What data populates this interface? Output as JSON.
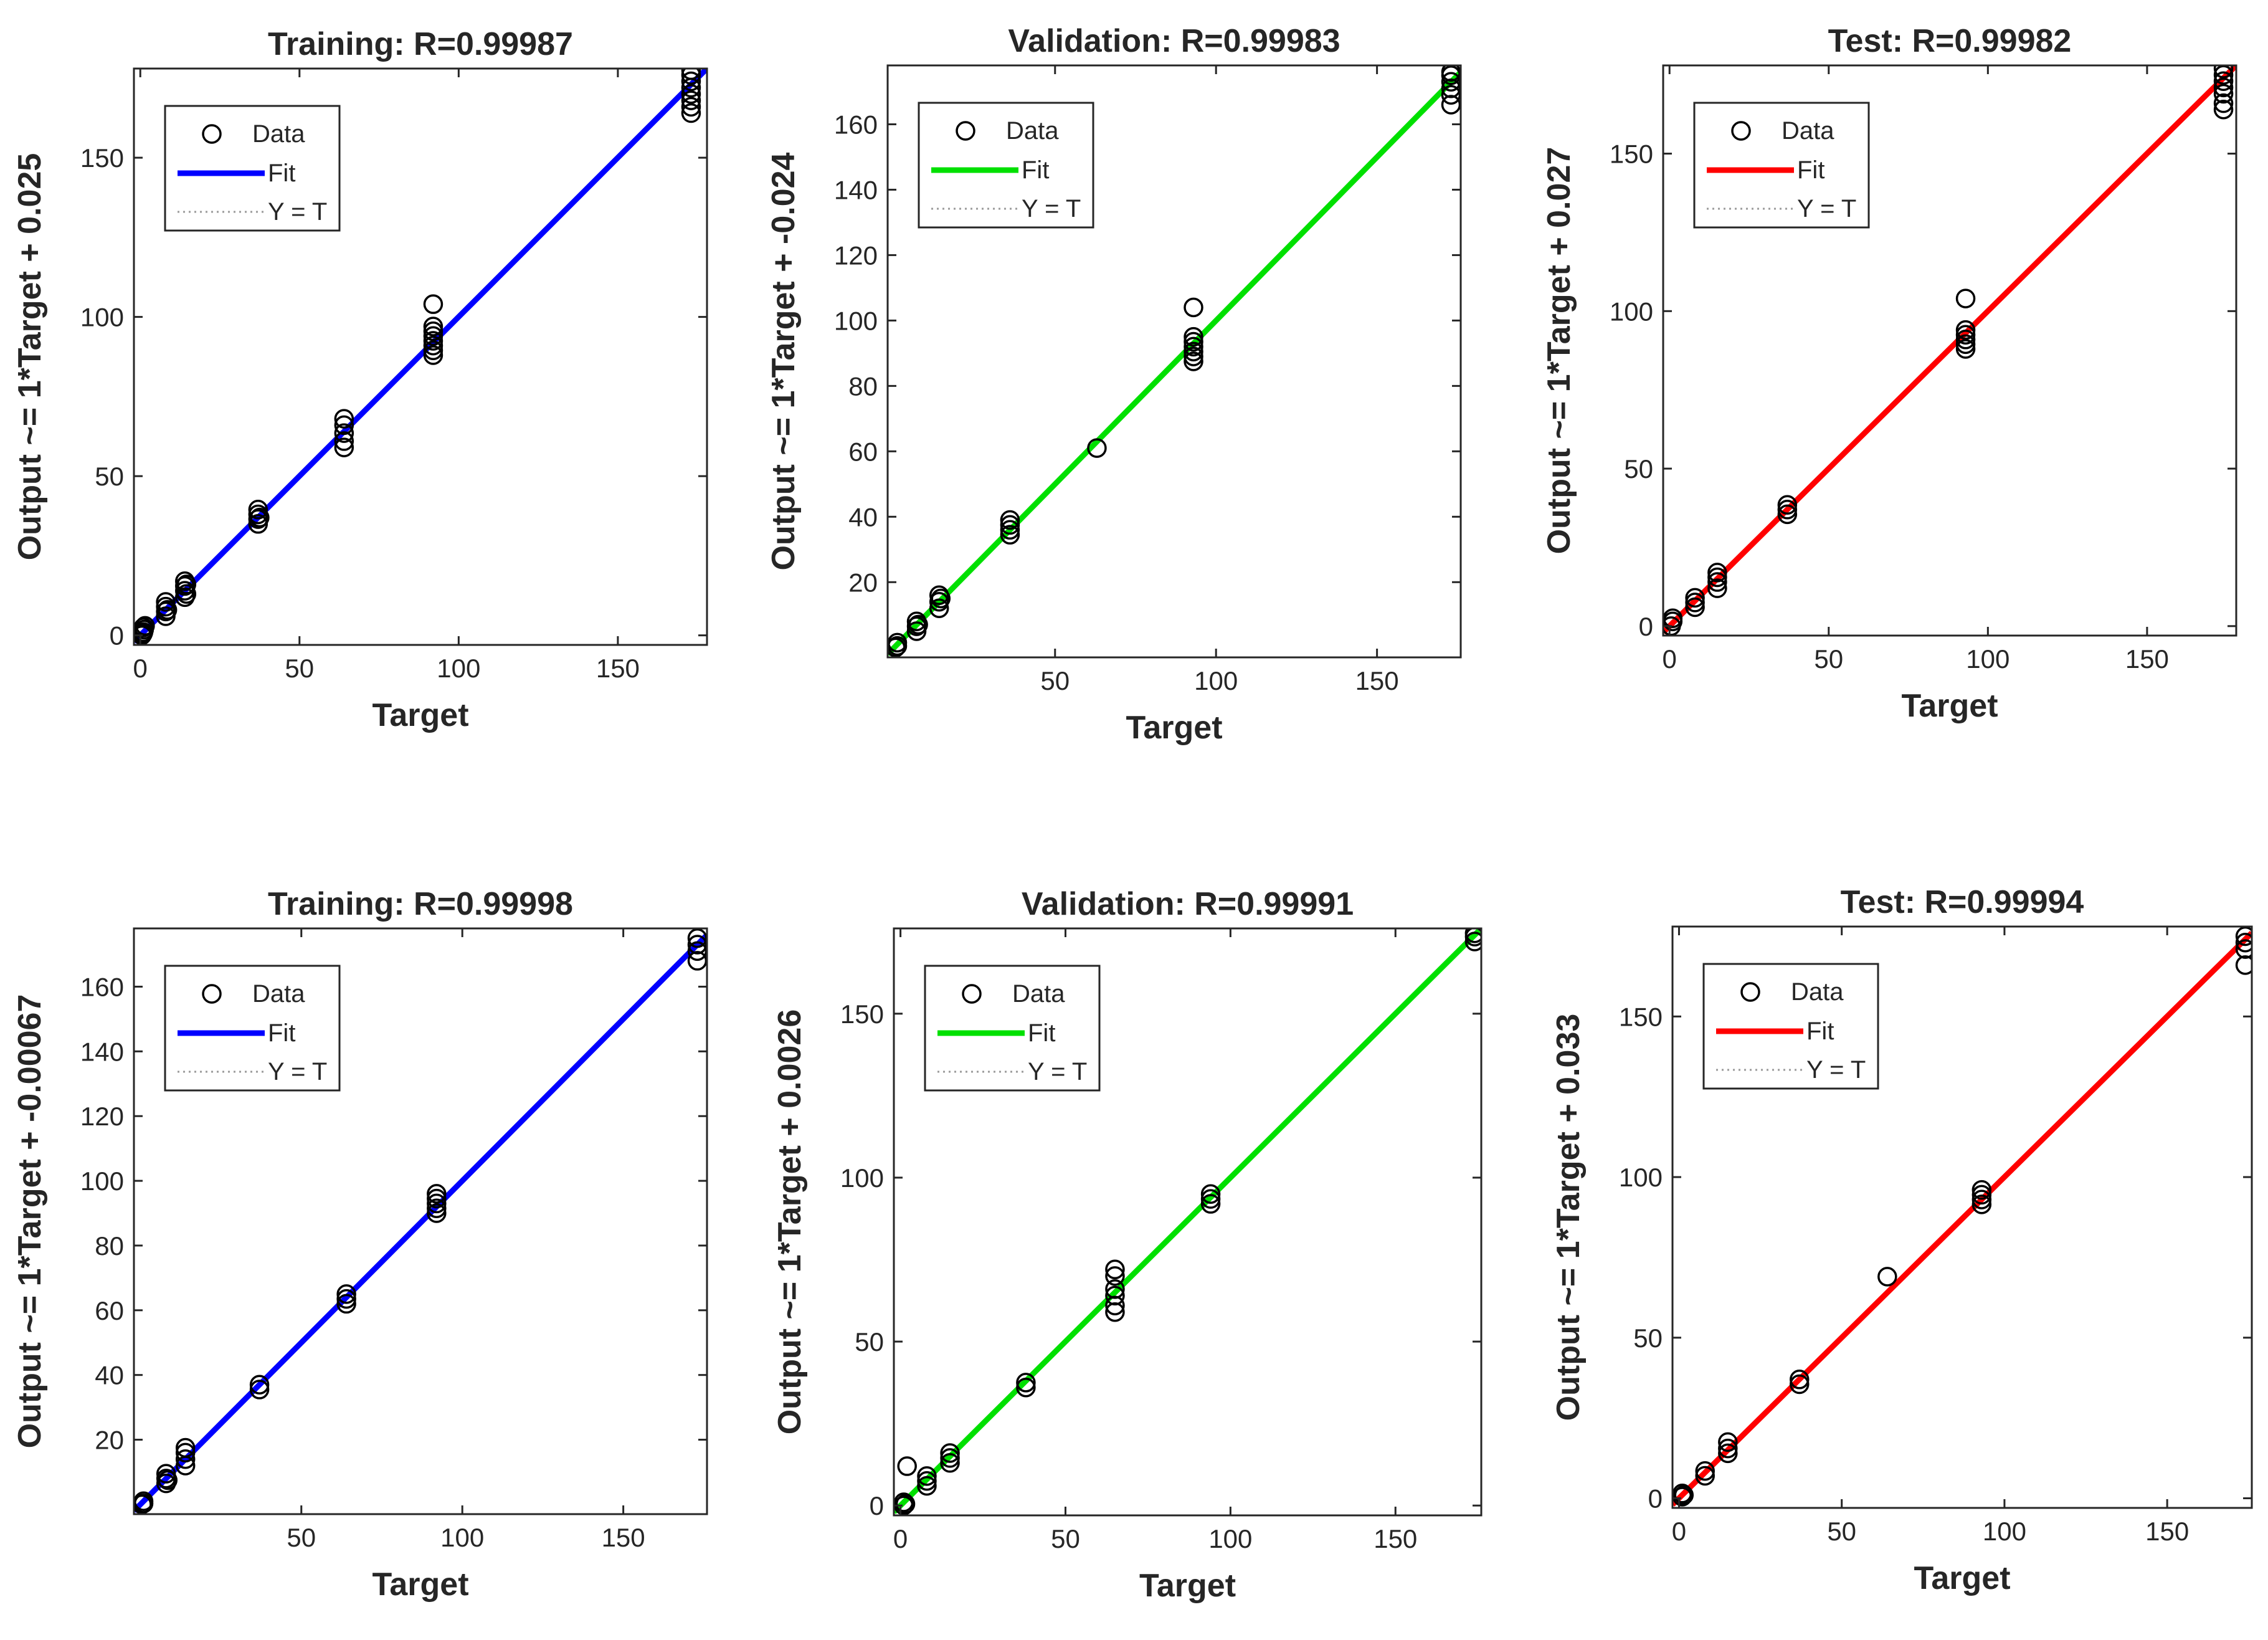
{
  "figure": {
    "background": "#ffffff",
    "axis_color": "#262626"
  },
  "chart_data": [
    {
      "type": "scatter",
      "title": "Training: R=0.99987",
      "xlabel": "Target",
      "ylabel": "Output ~= 1*Target + 0.025",
      "xlim": [
        -2,
        178
      ],
      "ylim": [
        -3,
        178
      ],
      "xticks": [
        0,
        50,
        100,
        150
      ],
      "yticks": [
        0,
        50,
        100,
        150
      ],
      "fit": {
        "slope": 1,
        "intercept": 0.025,
        "color": "#0000ff"
      },
      "legend": {
        "entries": [
          "Data",
          "Fit",
          "Y = T"
        ],
        "position": "top-left"
      },
      "points": [
        [
          0.5,
          0
        ],
        [
          1,
          1
        ],
        [
          1,
          2.5
        ],
        [
          1.2,
          1.8
        ],
        [
          1.5,
          3
        ],
        [
          0.8,
          0.5
        ],
        [
          8,
          6
        ],
        [
          8,
          7.5
        ],
        [
          8,
          9
        ],
        [
          8,
          10.5
        ],
        [
          8.5,
          8
        ],
        [
          14,
          12
        ],
        [
          14,
          14
        ],
        [
          14,
          15.5
        ],
        [
          14,
          17
        ],
        [
          14.5,
          13
        ],
        [
          14.5,
          16
        ],
        [
          37,
          35
        ],
        [
          37,
          36.5
        ],
        [
          37,
          38
        ],
        [
          37,
          39.5
        ],
        [
          37.5,
          37
        ],
        [
          64,
          59
        ],
        [
          64,
          61
        ],
        [
          64,
          63.5
        ],
        [
          64,
          66
        ],
        [
          64,
          68
        ],
        [
          92,
          88
        ],
        [
          92,
          89.5
        ],
        [
          92,
          91
        ],
        [
          92,
          92.5
        ],
        [
          92,
          94
        ],
        [
          92,
          95.5
        ],
        [
          92,
          97
        ],
        [
          92,
          104
        ],
        [
          173,
          164
        ],
        [
          173,
          166
        ],
        [
          173,
          168
        ],
        [
          173,
          170
        ],
        [
          173,
          172
        ],
        [
          173,
          174
        ],
        [
          173,
          176
        ],
        [
          173,
          177.5
        ]
      ]
    },
    {
      "type": "scatter",
      "title": "Validation: R=0.99983",
      "xlabel": "Target",
      "ylabel": "Output ~= 1*Target + -0.024",
      "xlim": [
        -2,
        176
      ],
      "ylim": [
        -3,
        178
      ],
      "xticks": [
        50,
        100,
        150
      ],
      "yticks": [
        20,
        40,
        60,
        80,
        100,
        120,
        140,
        160
      ],
      "fit": {
        "slope": 1,
        "intercept": -0.024,
        "color": "#00e000"
      },
      "legend": {
        "entries": [
          "Data",
          "Fit",
          "Y = T"
        ],
        "position": "top-left"
      },
      "points": [
        [
          0.5,
          0
        ],
        [
          1,
          1.5
        ],
        [
          1,
          0.5
        ],
        [
          7,
          5
        ],
        [
          7,
          6.5
        ],
        [
          7,
          8
        ],
        [
          7.5,
          7
        ],
        [
          14,
          12
        ],
        [
          14,
          14
        ],
        [
          14,
          16
        ],
        [
          14.5,
          15
        ],
        [
          36,
          34.5
        ],
        [
          36,
          36
        ],
        [
          36,
          37.5
        ],
        [
          36,
          39
        ],
        [
          63,
          61
        ],
        [
          93,
          87.5
        ],
        [
          93,
          89
        ],
        [
          93,
          90.5
        ],
        [
          93,
          92
        ],
        [
          93,
          93.5
        ],
        [
          93,
          95
        ],
        [
          93,
          104
        ],
        [
          173,
          166
        ],
        [
          173,
          169
        ],
        [
          173,
          171
        ],
        [
          173,
          173
        ],
        [
          173,
          175
        ],
        [
          173,
          176
        ]
      ]
    },
    {
      "type": "scatter",
      "title": "Test: R=0.99982",
      "xlabel": "Target",
      "ylabel": "Output ~= 1*Target + 0.027",
      "xlim": [
        -2,
        178
      ],
      "ylim": [
        -3,
        178
      ],
      "xticks": [
        0,
        50,
        100,
        150
      ],
      "yticks": [
        0,
        50,
        100,
        150
      ],
      "fit": {
        "slope": 1,
        "intercept": 0.027,
        "color": "#ff0000"
      },
      "legend": {
        "entries": [
          "Data",
          "Fit",
          "Y = T"
        ],
        "position": "top-left"
      },
      "points": [
        [
          0.5,
          0
        ],
        [
          1,
          1.5
        ],
        [
          1,
          2.5
        ],
        [
          8,
          6
        ],
        [
          8,
          7.5
        ],
        [
          8,
          9
        ],
        [
          15,
          12
        ],
        [
          15,
          14
        ],
        [
          15,
          15.5
        ],
        [
          15,
          17
        ],
        [
          37,
          35.5
        ],
        [
          37,
          37
        ],
        [
          37,
          38.5
        ],
        [
          93,
          88
        ],
        [
          93,
          89.5
        ],
        [
          93,
          91
        ],
        [
          93,
          92.5
        ],
        [
          93,
          94
        ],
        [
          93,
          104
        ],
        [
          174,
          164
        ],
        [
          174,
          166
        ],
        [
          174,
          169
        ],
        [
          174,
          171
        ],
        [
          174,
          173
        ],
        [
          174,
          175
        ],
        [
          174,
          177
        ]
      ]
    },
    {
      "type": "scatter",
      "title": "Training: R=0.99998",
      "xlabel": "Target",
      "ylabel": "Output ~= 1*Target + -0.00067",
      "xlim": [
        -2,
        176
      ],
      "ylim": [
        -3,
        178
      ],
      "xticks": [
        50,
        100,
        150
      ],
      "yticks": [
        20,
        40,
        60,
        80,
        100,
        120,
        140,
        160
      ],
      "fit": {
        "slope": 1,
        "intercept": -0.00067,
        "color": "#0000ff"
      },
      "legend": {
        "entries": [
          "Data",
          "Fit",
          "Y = T"
        ],
        "position": "top-left"
      },
      "points": [
        [
          0.5,
          0
        ],
        [
          1,
          1
        ],
        [
          1,
          0.3
        ],
        [
          8,
          6.5
        ],
        [
          8,
          8
        ],
        [
          8,
          9.5
        ],
        [
          8.5,
          7.5
        ],
        [
          14,
          12
        ],
        [
          14,
          14
        ],
        [
          14,
          16
        ],
        [
          14,
          17.5
        ],
        [
          37,
          35.5
        ],
        [
          37,
          37
        ],
        [
          64,
          62
        ],
        [
          64,
          63.5
        ],
        [
          64,
          65
        ],
        [
          92,
          90
        ],
        [
          92,
          91.5
        ],
        [
          92,
          93
        ],
        [
          92,
          94.5
        ],
        [
          92,
          96
        ],
        [
          173,
          168
        ],
        [
          173,
          171
        ],
        [
          173,
          173
        ],
        [
          173,
          175
        ]
      ]
    },
    {
      "type": "scatter",
      "title": "Validation: R=0.99991",
      "xlabel": "Target",
      "ylabel": "Output ~= 1*Target + 0.0026",
      "xlim": [
        -2,
        176
      ],
      "ylim": [
        -3,
        176
      ],
      "xticks": [
        0,
        50,
        100,
        150
      ],
      "yticks": [
        0,
        50,
        100,
        150
      ],
      "fit": {
        "slope": 1,
        "intercept": 0.0026,
        "color": "#00e000"
      },
      "legend": {
        "entries": [
          "Data",
          "Fit",
          "Y = T"
        ],
        "position": "top-left"
      },
      "points": [
        [
          1,
          0
        ],
        [
          1,
          1
        ],
        [
          1.5,
          0.5
        ],
        [
          2,
          12
        ],
        [
          8,
          6
        ],
        [
          8,
          7.5
        ],
        [
          8,
          9
        ],
        [
          15,
          13
        ],
        [
          15,
          14.5
        ],
        [
          15,
          16
        ],
        [
          38,
          36
        ],
        [
          38,
          37.5
        ],
        [
          65,
          59
        ],
        [
          65,
          61
        ],
        [
          65,
          64
        ],
        [
          65,
          66
        ],
        [
          65,
          70
        ],
        [
          65,
          72
        ],
        [
          94,
          92
        ],
        [
          94,
          93.5
        ],
        [
          94,
          95
        ],
        [
          174,
          172
        ],
        [
          174,
          173.5
        ],
        [
          174,
          174.5
        ]
      ]
    },
    {
      "type": "scatter",
      "title": "Test: R=0.99994",
      "xlabel": "Target",
      "ylabel": "Output ~= 1*Target + 0.033",
      "xlim": [
        -2,
        176
      ],
      "ylim": [
        -3,
        178
      ],
      "xticks": [
        0,
        50,
        100,
        150
      ],
      "yticks": [
        0,
        50,
        100,
        150
      ],
      "fit": {
        "slope": 1,
        "intercept": 0.033,
        "color": "#ff0000"
      },
      "legend": {
        "entries": [
          "Data",
          "Fit",
          "Y = T"
        ],
        "position": "top-left"
      },
      "points": [
        [
          1,
          0.5
        ],
        [
          1,
          1.5
        ],
        [
          1.5,
          1
        ],
        [
          8,
          7
        ],
        [
          8,
          8.5
        ],
        [
          15,
          14
        ],
        [
          15,
          15.5
        ],
        [
          15,
          17.5
        ],
        [
          37,
          35.5
        ],
        [
          37,
          37
        ],
        [
          64,
          69
        ],
        [
          93,
          91.5
        ],
        [
          93,
          93
        ],
        [
          93,
          94.5
        ],
        [
          93,
          96
        ],
        [
          174,
          166
        ],
        [
          174,
          171
        ],
        [
          174,
          173
        ],
        [
          174,
          175
        ]
      ]
    }
  ]
}
